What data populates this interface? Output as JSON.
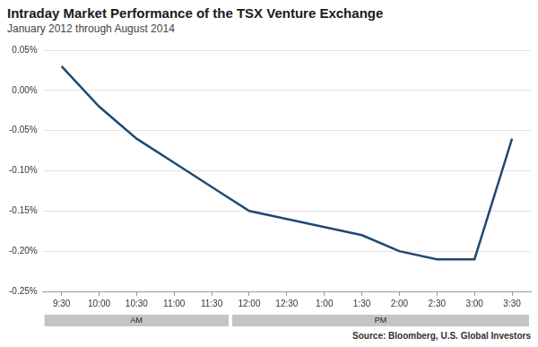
{
  "chart_data": {
    "type": "line",
    "title": "Intraday Market Performance of the TSX Venture Exchange",
    "subtitle": "January 2012 through August 2014",
    "source": "Source: Bloomberg, U.S. Global Investors",
    "categories": [
      "9:30",
      "10:00",
      "10:30",
      "11:00",
      "11:30",
      "12:00",
      "12:30",
      "1:00",
      "1:30",
      "2:00",
      "2:30",
      "3:00",
      "3:30"
    ],
    "values": [
      0.03,
      -0.02,
      -0.06,
      -0.09,
      -0.12,
      -0.15,
      -0.16,
      -0.17,
      -0.18,
      -0.2,
      -0.21,
      -0.21,
      -0.06
    ],
    "color": "#1d4a72",
    "ylim": [
      -0.25,
      0.05
    ],
    "yticks": [
      {
        "value": 0.05,
        "label": "0.05%"
      },
      {
        "value": 0,
        "label": "0.00%"
      },
      {
        "value": -0.05,
        "label": "-0.05%"
      },
      {
        "value": -0.1,
        "label": "-0.10%"
      },
      {
        "value": -0.15,
        "label": "-0.15%"
      },
      {
        "value": -0.2,
        "label": "-0.20%"
      },
      {
        "value": -0.25,
        "label": "-0.25%"
      }
    ],
    "grid": true,
    "category_groups": [
      {
        "label": "AM",
        "first": "9:30",
        "last": "11:30"
      },
      {
        "label": "PM",
        "first": "12:00",
        "last": "3:30"
      }
    ]
  }
}
